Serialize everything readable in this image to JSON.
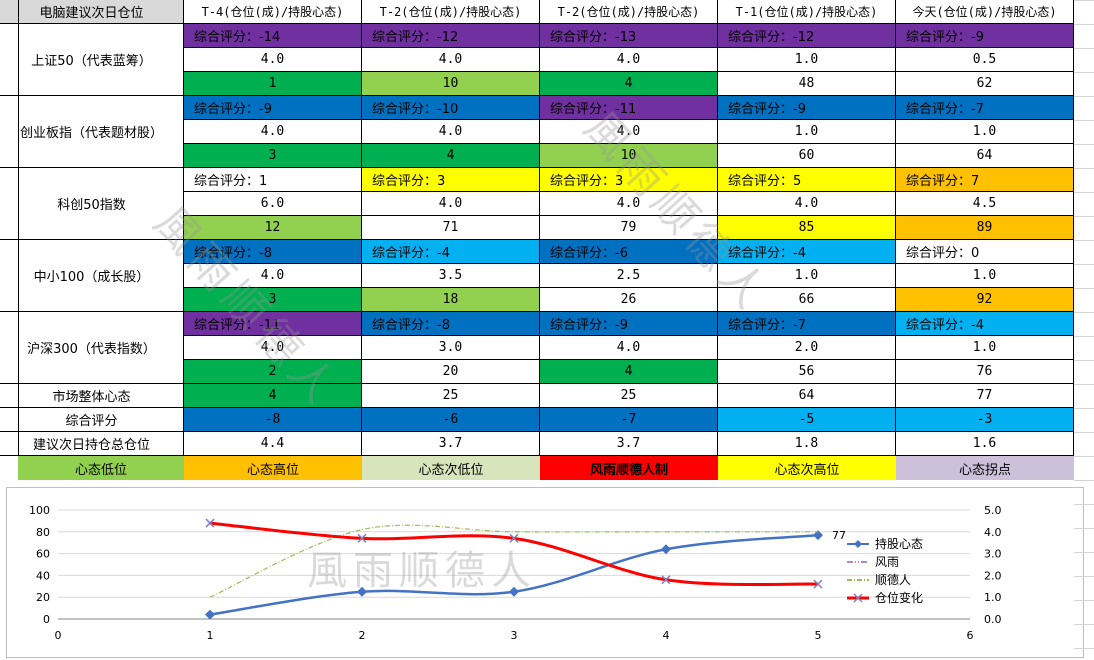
{
  "table": {
    "corner": "电脑建议次日仓位",
    "columns": [
      "T-4(仓位(成)/持股心态)",
      "T-2(仓位(成)/持股心态)",
      "T-2(仓位(成)/持股心态)",
      "T-1(仓位(成)/持股心态)",
      "今天(仓位(成)/持股心态)"
    ],
    "groups": [
      {
        "label": "上证50（代表蓝筹）",
        "scores": [
          "综合评分：-14",
          "综合评分：-12",
          "综合评分：-13",
          "综合评分：-12",
          "综合评分：-9"
        ],
        "score_colors": [
          "#7030a0",
          "#7030a0",
          "#7030a0",
          "#7030a0",
          "#7030a0"
        ],
        "positions": [
          "4.0",
          "4.0",
          "4.0",
          "1.0",
          "0.5"
        ],
        "moods": [
          "1",
          "10",
          "4",
          "48",
          "62"
        ],
        "mood_colors": [
          "#00b050",
          "#92d050",
          "#00b050",
          "#ffffff",
          "#ffffff"
        ]
      },
      {
        "label": "创业板指（代表题材股）",
        "scores": [
          "综合评分：-9",
          "综合评分：-10",
          "综合评分：-11",
          "综合评分：-9",
          "综合评分：-7"
        ],
        "score_colors": [
          "#0070c0",
          "#0070c0",
          "#7030a0",
          "#0070c0",
          "#0070c0"
        ],
        "positions": [
          "4.0",
          "4.0",
          "4.0",
          "1.0",
          "1.0"
        ],
        "moods": [
          "3",
          "4",
          "10",
          "60",
          "64"
        ],
        "mood_colors": [
          "#00b050",
          "#00b050",
          "#92d050",
          "#ffffff",
          "#ffffff"
        ]
      },
      {
        "label": "科创50指数",
        "scores": [
          "综合评分：1",
          "综合评分：3",
          "综合评分：3",
          "综合评分：5",
          "综合评分：7"
        ],
        "score_colors": [
          "#ffffff",
          "#ffff00",
          "#ffff00",
          "#ffff00",
          "#ffc000"
        ],
        "positions": [
          "6.0",
          "4.0",
          "4.0",
          "4.0",
          "4.5"
        ],
        "moods": [
          "12",
          "71",
          "79",
          "85",
          "89"
        ],
        "mood_colors": [
          "#92d050",
          "#ffffff",
          "#ffffff",
          "#ffff00",
          "#ffc000"
        ]
      },
      {
        "label": "中小100（成长股）",
        "scores": [
          "综合评分：-8",
          "综合评分：-4",
          "综合评分：-6",
          "综合评分：-4",
          "综合评分：0"
        ],
        "score_colors": [
          "#0070c0",
          "#00b0f0",
          "#0070c0",
          "#00b0f0",
          "#ffffff"
        ],
        "positions": [
          "4.0",
          "3.5",
          "2.5",
          "1.0",
          "1.0"
        ],
        "moods": [
          "3",
          "18",
          "26",
          "66",
          "92"
        ],
        "mood_colors": [
          "#00b050",
          "#92d050",
          "#ffffff",
          "#ffffff",
          "#ffc000"
        ]
      },
      {
        "label": "沪深300（代表指数）",
        "scores": [
          "综合评分：-11",
          "综合评分：-8",
          "综合评分：-9",
          "综合评分：-7",
          "综合评分：-4"
        ],
        "score_colors": [
          "#7030a0",
          "#0070c0",
          "#0070c0",
          "#0070c0",
          "#00b0f0"
        ],
        "positions": [
          "4.0",
          "3.0",
          "4.0",
          "2.0",
          "1.0"
        ],
        "moods": [
          "2",
          "20",
          "4",
          "56",
          "76"
        ],
        "mood_colors": [
          "#00b050",
          "#ffffff",
          "#00b050",
          "#ffffff",
          "#ffffff"
        ]
      }
    ],
    "market_label": "市场整体心态",
    "market_values": [
      "4",
      "25",
      "25",
      "64",
      "77"
    ],
    "market_colors": [
      "#00b050",
      "#ffffff",
      "#ffffff",
      "#ffffff",
      "#ffffff"
    ],
    "score_label": "综合评分",
    "score_values": [
      "-8",
      "-6",
      "-7",
      "-5",
      "-3"
    ],
    "score_value_colors": [
      "#0070c0",
      "#0070c0",
      "#0070c0",
      "#00b0f0",
      "#00b0f0"
    ],
    "pos_label": "建议次日持仓总仓位",
    "pos_values": [
      "4.4",
      "3.7",
      "3.7",
      "1.8",
      "1.6"
    ]
  },
  "legend": [
    {
      "text": "心态低位",
      "color": "#92d050",
      "text_color": "#000000",
      "bold": false
    },
    {
      "text": "心态高位",
      "color": "#ffc000",
      "text_color": "#000000",
      "bold": false
    },
    {
      "text": "心态次低位",
      "color": "#d8e4bc",
      "text_color": "#000000",
      "bold": false
    },
    {
      "text": "风雨顺德人制",
      "color": "#ff0000",
      "text_color": "#000000",
      "bold": true
    },
    {
      "text": "心态次高位",
      "color": "#ffff00",
      "text_color": "#000000",
      "bold": false
    },
    {
      "text": "心态拐点",
      "color": "#ccc0da",
      "text_color": "#000000",
      "bold": false
    }
  ],
  "watermark": "風雨顺德人",
  "chart_data": {
    "type": "line",
    "x_ticks": [
      "0",
      "1",
      "2",
      "3",
      "4",
      "5",
      "6"
    ],
    "xlim": [
      0,
      6
    ],
    "ylim_left": [
      0,
      100
    ],
    "y_ticks_left": [
      "0",
      "20",
      "40",
      "60",
      "80",
      "100"
    ],
    "ylim_right": [
      0,
      5
    ],
    "y_ticks_right": [
      "0.0",
      "1.0",
      "2.0",
      "3.0",
      "4.0",
      "5.0"
    ],
    "series": [
      {
        "name": "持股心态",
        "axis": "left",
        "color": "#4472c4",
        "x": [
          1,
          2,
          3,
          4,
          5
        ],
        "values": [
          4,
          25,
          25,
          64,
          77
        ]
      },
      {
        "name": "风雨",
        "axis": "left",
        "color": "#7f3fbf",
        "x": [],
        "values": []
      },
      {
        "name": "顺德人",
        "axis": "right",
        "color": "#9bbb59",
        "x": [
          1,
          2,
          3,
          4,
          5
        ],
        "values": [
          1.0,
          4.1,
          4.0,
          4.0,
          4.0
        ]
      },
      {
        "name": "仓位变化",
        "axis": "right",
        "color": "#ff0000",
        "x": [
          1,
          2,
          3,
          4,
          5
        ],
        "values": [
          4.4,
          3.7,
          3.7,
          1.8,
          1.6
        ]
      }
    ],
    "data_label": "77",
    "grid": true,
    "legend_position": "right"
  }
}
